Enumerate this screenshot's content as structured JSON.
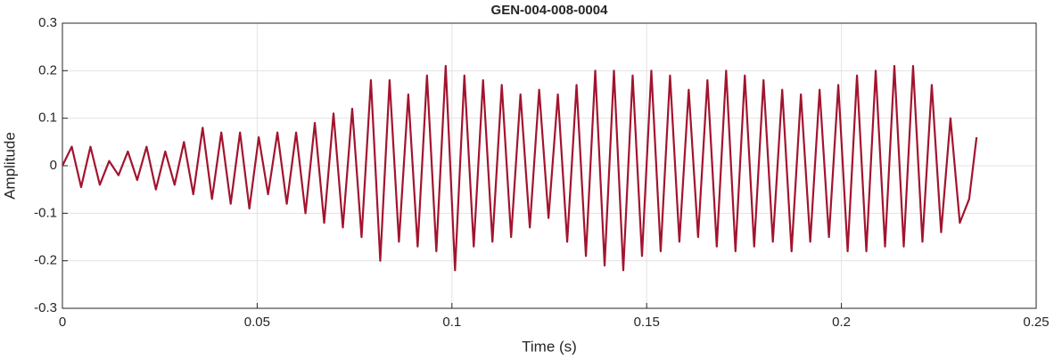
{
  "chart_data": {
    "type": "line",
    "title": "GEN-004-008-0004",
    "xlabel": "Time (s)",
    "ylabel": "Amplitude",
    "x": [
      0,
      0.0024,
      0.0048,
      0.0072,
      0.0096,
      0.012,
      0.0144,
      0.0168,
      0.0192,
      0.0216,
      0.024,
      0.0264,
      0.0288,
      0.0312,
      0.0336,
      0.036,
      0.0384,
      0.0408,
      0.0432,
      0.0456,
      0.048,
      0.0504,
      0.0528,
      0.0552,
      0.0576,
      0.06,
      0.0624,
      0.0648,
      0.0672,
      0.0696,
      0.072,
      0.0744,
      0.0768,
      0.0792,
      0.0816,
      0.084,
      0.0864,
      0.0888,
      0.0912,
      0.0936,
      0.096,
      0.0984,
      0.1008,
      0.1032,
      0.1056,
      0.108,
      0.1104,
      0.1128,
      0.1152,
      0.1176,
      0.12,
      0.1224,
      0.1248,
      0.1272,
      0.1296,
      0.132,
      0.1344,
      0.1368,
      0.1392,
      0.1416,
      0.144,
      0.1464,
      0.1488,
      0.1512,
      0.1536,
      0.156,
      0.1584,
      0.1608,
      0.1632,
      0.1656,
      0.168,
      0.1704,
      0.1728,
      0.1752,
      0.1776,
      0.18,
      0.1824,
      0.1848,
      0.1872,
      0.1896,
      0.192,
      0.1944,
      0.1968,
      0.1992,
      0.2016,
      0.204,
      0.2064,
      0.2088,
      0.2112,
      0.2136,
      0.216,
      0.2184,
      0.2208,
      0.2232,
      0.2256,
      0.228,
      0.2304,
      0.2328,
      0.2347
    ],
    "values": [
      0,
      0.04,
      -0.045,
      0.04,
      -0.04,
      0.01,
      -0.02,
      0.03,
      -0.03,
      0.04,
      -0.05,
      0.03,
      -0.04,
      0.05,
      -0.06,
      0.08,
      -0.07,
      0.07,
      -0.08,
      0.07,
      -0.09,
      0.06,
      -0.06,
      0.07,
      -0.08,
      0.07,
      -0.1,
      0.09,
      -0.12,
      0.11,
      -0.13,
      0.12,
      -0.15,
      0.18,
      -0.2,
      0.18,
      -0.16,
      0.15,
      -0.17,
      0.19,
      -0.18,
      0.21,
      -0.22,
      0.19,
      -0.17,
      0.18,
      -0.16,
      0.17,
      -0.15,
      0.15,
      -0.13,
      0.16,
      -0.11,
      0.15,
      -0.16,
      0.17,
      -0.19,
      0.2,
      -0.21,
      0.2,
      -0.22,
      0.19,
      -0.19,
      0.2,
      -0.18,
      0.19,
      -0.16,
      0.16,
      -0.15,
      0.18,
      -0.17,
      0.2,
      -0.18,
      0.19,
      -0.17,
      0.18,
      -0.16,
      0.16,
      -0.18,
      0.15,
      -0.16,
      0.16,
      -0.15,
      0.17,
      -0.18,
      0.19,
      -0.18,
      0.2,
      -0.17,
      0.21,
      -0.17,
      0.21,
      -0.16,
      0.17,
      -0.14,
      0.1,
      -0.12,
      -0.07,
      0.06
    ],
    "color": "#a2142f",
    "xlim": [
      0,
      0.25
    ],
    "xticks": [
      0,
      0.05,
      0.1,
      0.15,
      0.2,
      0.25
    ],
    "ylim": [
      -0.3,
      0.3
    ],
    "yticks": [
      -0.3,
      -0.2,
      -0.1,
      0,
      0.1,
      0.2,
      0.3
    ],
    "grid": true
  }
}
